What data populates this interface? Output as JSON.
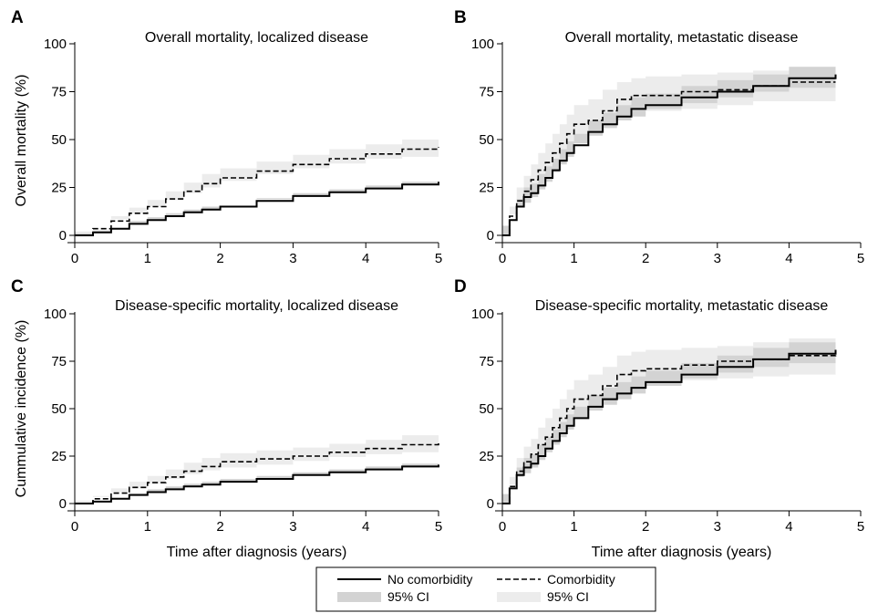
{
  "legend": {
    "no_comorbidity": "No comorbidity",
    "comorbidity": "Comorbidity",
    "ci_no_comorbidity": "95% CI",
    "ci_comorbidity": "95% CI"
  },
  "colors": {
    "line": "#000000",
    "ci_no_comorbidity": "#d3d3d3",
    "ci_comorbidity": "#ececec"
  },
  "chart_data": [
    {
      "type": "line",
      "panel_label": "A",
      "title": "Overall mortality, localized disease",
      "ylabel": "Overall mortality (%)",
      "xlabel": "",
      "xlim": [
        0,
        5
      ],
      "ylim": [
        0,
        100
      ],
      "xticks": [
        "0",
        "1",
        "2",
        "3",
        "4",
        "5"
      ],
      "yticks": [
        "0",
        "25",
        "50",
        "75",
        "100"
      ],
      "series": [
        {
          "name": "No comorbidity",
          "style": "solid",
          "x": [
            0,
            0.25,
            0.5,
            0.75,
            1,
            1.25,
            1.5,
            1.75,
            2,
            2.5,
            3,
            3.5,
            4,
            4.5,
            5
          ],
          "y": [
            0,
            1.5,
            3.5,
            6,
            8,
            10,
            12,
            13.5,
            15,
            18,
            20.5,
            22.5,
            24.5,
            26.5,
            28
          ],
          "ci_low": [
            0,
            1,
            2.5,
            4.5,
            6.5,
            8.5,
            10.5,
            12,
            13.5,
            16.5,
            19,
            21,
            23,
            25,
            26.5
          ],
          "ci_high": [
            0,
            2,
            4.5,
            7.5,
            9.5,
            11.5,
            13.5,
            15,
            16.5,
            19.5,
            22,
            24,
            26,
            28,
            30
          ]
        },
        {
          "name": "Comorbidity",
          "style": "dashed",
          "x": [
            0,
            0.25,
            0.5,
            0.75,
            1,
            1.25,
            1.5,
            1.75,
            2,
            2.5,
            3,
            3.5,
            4,
            4.5,
            5
          ],
          "y": [
            0,
            3.5,
            7.5,
            11.5,
            15,
            19,
            23,
            27,
            30,
            33.5,
            37,
            40,
            42.5,
            45,
            46
          ],
          "ci_low": [
            0,
            2,
            5,
            8.5,
            11.5,
            15,
            18.5,
            22,
            25,
            28.5,
            32,
            35,
            37.5,
            40,
            41
          ],
          "ci_high": [
            0,
            5,
            10,
            14.5,
            18.5,
            23,
            27.5,
            32,
            35,
            38.5,
            42,
            45,
            47.5,
            50,
            51
          ]
        }
      ]
    },
    {
      "type": "line",
      "panel_label": "B",
      "title": "Overall mortality, metastatic disease",
      "ylabel": "",
      "xlabel": "",
      "xlim": [
        0,
        5
      ],
      "ylim": [
        0,
        100
      ],
      "xticks": [
        "0",
        "1",
        "2",
        "3",
        "4",
        "5"
      ],
      "yticks": [
        "0",
        "25",
        "50",
        "75",
        "100"
      ],
      "series": [
        {
          "name": "No comorbidity",
          "style": "solid",
          "x": [
            0,
            0.1,
            0.2,
            0.3,
            0.4,
            0.5,
            0.6,
            0.7,
            0.8,
            0.9,
            1,
            1.2,
            1.4,
            1.6,
            1.8,
            2,
            2.5,
            3,
            3.5,
            4,
            4.65
          ],
          "y": [
            0,
            8,
            15,
            20,
            22,
            26,
            30,
            34,
            39,
            43,
            47,
            54,
            58,
            62,
            66,
            68,
            72,
            75,
            78,
            82,
            84
          ],
          "ci_low": [
            0,
            5,
            11,
            15,
            17,
            20,
            24,
            28,
            33,
            37,
            41,
            48,
            52,
            56,
            60,
            62,
            66,
            69,
            72,
            75,
            77
          ],
          "ci_high": [
            0,
            11,
            19,
            25,
            27,
            32,
            36,
            40,
            45,
            49,
            53,
            60,
            64,
            68,
            72,
            74,
            78,
            81,
            84,
            88,
            89
          ]
        },
        {
          "name": "Comorbidity",
          "style": "dashed",
          "x": [
            0,
            0.1,
            0.2,
            0.3,
            0.4,
            0.5,
            0.6,
            0.7,
            0.8,
            0.9,
            1,
            1.2,
            1.4,
            1.6,
            1.8,
            2,
            2.5,
            3,
            3.5,
            4,
            4.65
          ],
          "y": [
            0,
            10,
            18,
            23,
            29,
            34,
            38,
            43,
            48,
            53,
            58,
            60,
            65,
            71,
            73,
            73,
            75,
            76,
            78,
            80,
            80
          ],
          "ci_low": [
            0,
            5,
            11,
            16,
            21,
            25,
            29,
            34,
            38,
            43,
            47,
            50,
            55,
            61,
            63,
            63,
            65,
            66,
            68,
            70,
            70
          ],
          "ci_high": [
            0,
            15,
            25,
            31,
            37,
            43,
            48,
            53,
            58,
            63,
            68,
            71,
            76,
            80,
            82,
            83,
            84,
            85,
            86,
            88,
            88
          ]
        }
      ]
    },
    {
      "type": "line",
      "panel_label": "C",
      "title": "Disease-specific mortality, localized disease",
      "ylabel": "Cummulative incidence (%)",
      "xlabel": "Time after diagnosis (years)",
      "xlim": [
        0,
        5
      ],
      "ylim": [
        0,
        100
      ],
      "xticks": [
        "0",
        "1",
        "2",
        "3",
        "4",
        "5"
      ],
      "yticks": [
        "0",
        "25",
        "50",
        "75",
        "100"
      ],
      "series": [
        {
          "name": "No comorbidity",
          "style": "solid",
          "x": [
            0,
            0.25,
            0.5,
            0.75,
            1,
            1.25,
            1.5,
            1.75,
            2,
            2.5,
            3,
            3.5,
            4,
            4.5,
            5
          ],
          "y": [
            0,
            1,
            2.5,
            4.5,
            6,
            7.5,
            9,
            10,
            11.5,
            13,
            15,
            16.5,
            18,
            19.5,
            20.5
          ],
          "ci_low": [
            0,
            0.5,
            1.5,
            3.5,
            5,
            6.5,
            8,
            9,
            10,
            11.5,
            13.5,
            15,
            16.5,
            18,
            19
          ],
          "ci_high": [
            0,
            1.5,
            3.5,
            5.5,
            7.5,
            9,
            10.5,
            11.5,
            13,
            14.5,
            16.5,
            18,
            19.5,
            21,
            22.5
          ]
        },
        {
          "name": "Comorbidity",
          "style": "dashed",
          "x": [
            0,
            0.25,
            0.5,
            0.75,
            1,
            1.25,
            1.5,
            1.75,
            2,
            2.5,
            3,
            3.5,
            4,
            4.5,
            5
          ],
          "y": [
            0,
            2.5,
            5.5,
            8.5,
            11,
            14,
            17,
            19.5,
            22,
            23.5,
            25,
            27,
            29,
            31,
            32
          ],
          "ci_low": [
            0,
            1.5,
            3.5,
            6,
            8,
            10.5,
            13,
            15.5,
            17.5,
            19,
            20.5,
            22.5,
            24.5,
            26,
            27
          ],
          "ci_high": [
            0,
            4,
            8,
            11.5,
            14.5,
            18,
            21.5,
            24,
            26.5,
            28,
            29.5,
            31.5,
            33.5,
            36,
            37.5
          ]
        }
      ]
    },
    {
      "type": "line",
      "panel_label": "D",
      "title": "Disease-specific mortality, metastatic disease",
      "ylabel": "",
      "xlabel": "Time after diagnosis (years)",
      "xlim": [
        0,
        5
      ],
      "ylim": [
        0,
        100
      ],
      "xticks": [
        "0",
        "1",
        "2",
        "3",
        "4",
        "5"
      ],
      "yticks": [
        "0",
        "25",
        "50",
        "75",
        "100"
      ],
      "series": [
        {
          "name": "No comorbidity",
          "style": "solid",
          "x": [
            0,
            0.1,
            0.2,
            0.3,
            0.4,
            0.5,
            0.6,
            0.7,
            0.8,
            0.9,
            1,
            1.2,
            1.4,
            1.6,
            1.8,
            2,
            2.5,
            3,
            3.5,
            4,
            4.65
          ],
          "y": [
            0,
            8,
            15,
            19,
            21,
            25,
            29,
            33,
            37,
            41,
            45,
            51,
            55,
            58,
            61,
            64,
            68,
            72,
            76,
            79,
            81
          ],
          "ci_low": [
            0,
            5,
            11,
            14,
            16,
            19,
            23,
            27,
            31,
            35,
            39,
            45,
            49,
            52,
            55,
            58,
            62,
            66,
            69,
            72,
            74
          ],
          "ci_high": [
            0,
            11,
            19,
            24,
            26,
            31,
            35,
            39,
            43,
            47,
            51,
            57,
            61,
            64,
            67,
            70,
            74,
            78,
            82,
            85,
            86
          ]
        },
        {
          "name": "Comorbidity",
          "style": "dashed",
          "x": [
            0,
            0.1,
            0.2,
            0.3,
            0.4,
            0.5,
            0.6,
            0.7,
            0.8,
            0.9,
            1,
            1.2,
            1.4,
            1.6,
            1.8,
            2,
            2.5,
            3,
            3.5,
            4,
            4.65
          ],
          "y": [
            0,
            9,
            17,
            22,
            26,
            31,
            35,
            40,
            45,
            50,
            55,
            57,
            62,
            68,
            70,
            71,
            73,
            75,
            76,
            78,
            79
          ],
          "ci_low": [
            0,
            4,
            10,
            15,
            18,
            22,
            26,
            31,
            35,
            40,
            44,
            47,
            52,
            58,
            60,
            61,
            63,
            65,
            66,
            67,
            68
          ],
          "ci_high": [
            0,
            14,
            24,
            30,
            34,
            40,
            45,
            50,
            55,
            60,
            65,
            68,
            72,
            78,
            80,
            81,
            82,
            83,
            85,
            87,
            87
          ]
        }
      ]
    }
  ]
}
